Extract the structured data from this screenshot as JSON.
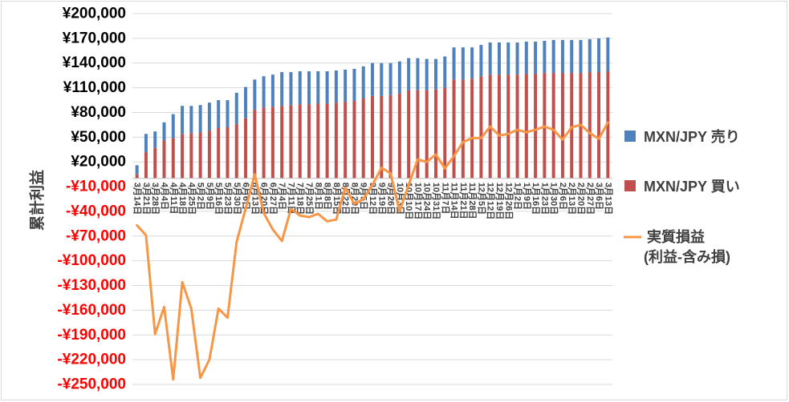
{
  "chart_data": {
    "type": "bar",
    "stacked": true,
    "ylabel": "累計利益",
    "ylim": [
      -250000,
      200000
    ],
    "y_ticks": [
      200000,
      170000,
      140000,
      110000,
      80000,
      50000,
      20000,
      -10000,
      -40000,
      -70000,
      -100000,
      -130000,
      -160000,
      -190000,
      -220000,
      -250000
    ],
    "y_tick_labels": [
      "¥200,000",
      "¥170,000",
      "¥140,000",
      "¥110,000",
      "¥80,000",
      "¥50,000",
      "¥20,000",
      "-¥10,000",
      "-¥40,000",
      "-¥70,000",
      "-¥100,000",
      "-¥130,000",
      "-¥160,000",
      "-¥190,000",
      "-¥220,000",
      "-¥250,000"
    ],
    "grid": true,
    "legend": "right",
    "colors": {
      "positive_tick_label": "#000000",
      "negative_tick_label": "#ff0000",
      "gridline": "#d9d9d9"
    },
    "categories": [
      "3月14日",
      "3月21日",
      "3月28日",
      "4月4日",
      "4月11日",
      "4月18日",
      "4月25日",
      "5月2日",
      "5月9日",
      "5月16日",
      "5月23日",
      "5月30日",
      "6月6日",
      "6月13日",
      "6月20日",
      "6月27日",
      "7月4日",
      "7月11日",
      "7月18日",
      "7月25日",
      "8月1日",
      "8月8日",
      "8月15日",
      "8月22日",
      "8月29日",
      "9月5日",
      "9月12日",
      "9月19日",
      "9月26日",
      "10月3日",
      "10月10日",
      "10月17日",
      "10月24日",
      "10月31日",
      "11月7日",
      "11月14日",
      "11月21日",
      "11月28日",
      "12月5日",
      "12月12日",
      "12月19日",
      "12月26日",
      "1月2日",
      "1月9日",
      "1月16日",
      "1月23日",
      "1月30日",
      "2月6日",
      "2月13日",
      "2月20日",
      "2月27日",
      "3月6日",
      "3月13日"
    ],
    "series": [
      {
        "name": "MXN/JPY 売り",
        "type": "bar",
        "color": "#4f81bd",
        "values": [
          11000,
          22000,
          20000,
          22000,
          29000,
          34000,
          33000,
          33000,
          34000,
          34000,
          33000,
          38000,
          38000,
          37000,
          38000,
          39000,
          41000,
          40000,
          40000,
          40000,
          39000,
          39000,
          39000,
          39000,
          39000,
          39000,
          40000,
          40000,
          39000,
          39000,
          39000,
          39000,
          38000,
          37000,
          38000,
          39000,
          39000,
          38000,
          38000,
          39000,
          39000,
          39000,
          39000,
          39000,
          39000,
          39000,
          40000,
          40000,
          40000,
          40000,
          40000,
          41000,
          41000
        ]
      },
      {
        "name": "MXN/JPY 買い",
        "type": "bar",
        "color": "#c0504d",
        "values": [
          5000,
          32000,
          37000,
          46000,
          49000,
          54000,
          55000,
          56000,
          58000,
          61000,
          62000,
          66000,
          73000,
          83000,
          86000,
          87000,
          88000,
          89000,
          90000,
          90000,
          91000,
          91000,
          92000,
          93000,
          94000,
          97000,
          100000,
          100000,
          101000,
          103000,
          107000,
          107000,
          107000,
          108000,
          110000,
          120000,
          120000,
          121000,
          124000,
          126000,
          126000,
          126000,
          126000,
          127000,
          127000,
          128000,
          128000,
          128000,
          128000,
          128000,
          129000,
          129000,
          130000
        ]
      },
      {
        "name": "実質損益",
        "name_line2": "(利益-含み損)",
        "type": "line",
        "color": "#f79646",
        "values": [
          -57000,
          -69000,
          -189000,
          -156000,
          -244000,
          -126000,
          -158000,
          -242000,
          -220000,
          -158000,
          -169000,
          -77000,
          -37000,
          5000,
          -42000,
          -62000,
          -76000,
          -37000,
          -45000,
          -47000,
          -43000,
          -52000,
          -50000,
          -11000,
          -31000,
          -25000,
          -8000,
          13000,
          6000,
          -40000,
          -8000,
          23000,
          20000,
          29000,
          12000,
          27000,
          44000,
          49000,
          49000,
          63000,
          52000,
          54000,
          59000,
          56000,
          59000,
          63000,
          59000,
          47000,
          62000,
          65000,
          55000,
          48000,
          68000
        ]
      }
    ]
  }
}
